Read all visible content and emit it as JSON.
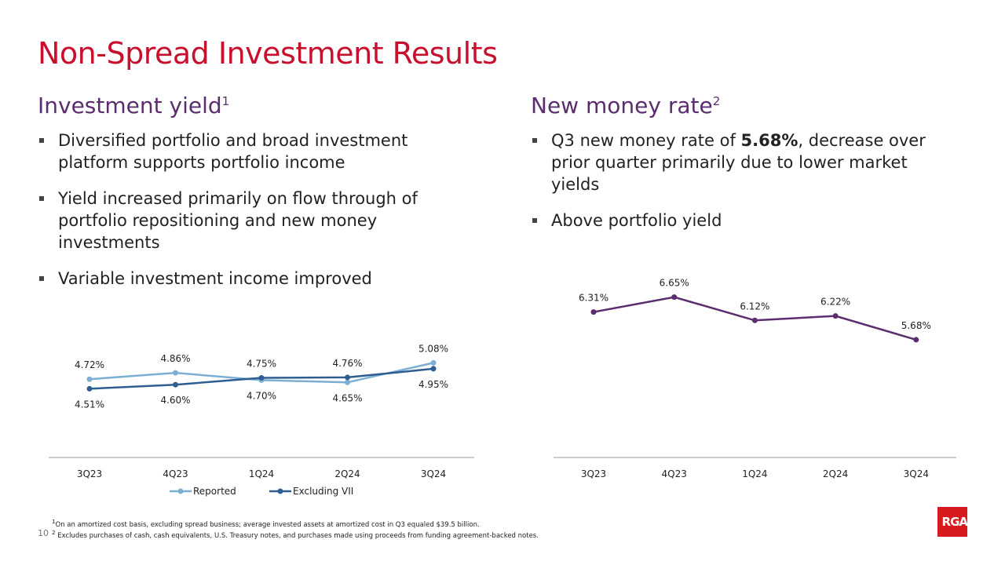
{
  "title": "Non-Spread Investment Results",
  "left": {
    "heading": "Investment yield",
    "heading_sup": "1",
    "bullets": [
      "Diversified portfolio and broad investment platform supports portfolio income",
      "Yield increased primarily on flow through of portfolio repositioning and new money investments",
      "Variable investment income improved"
    ]
  },
  "right": {
    "heading": "New money rate",
    "heading_sup": "2",
    "bullets": [
      {
        "pre": "Q3 new money rate of ",
        "bold": "5.68%",
        "post": ", decrease over prior quarter primarily due to lower market yields"
      },
      {
        "pre": "Above portfolio yield",
        "bold": "",
        "post": ""
      }
    ]
  },
  "chart_data": [
    {
      "type": "line",
      "categories": [
        "3Q23",
        "4Q23",
        "1Q24",
        "2Q24",
        "3Q24"
      ],
      "series": [
        {
          "name": "Reported",
          "values": [
            4.72,
            4.86,
            4.7,
            4.65,
            5.08
          ],
          "labels": [
            "4.72%",
            "4.86%",
            "4.70%",
            "4.65%",
            "5.08%"
          ],
          "color": "#7bafd4"
        },
        {
          "name": "Excluding VII",
          "values": [
            4.51,
            4.6,
            4.75,
            4.76,
            4.95
          ],
          "labels": [
            "4.51%",
            "4.60%",
            "4.75%",
            "4.76%",
            "4.95%"
          ],
          "color": "#2e5e91"
        }
      ],
      "ylim": [
        3.0,
        5.5
      ],
      "grid": false,
      "legend": "bottom"
    },
    {
      "type": "line",
      "categories": [
        "3Q23",
        "4Q23",
        "1Q24",
        "2Q24",
        "3Q24"
      ],
      "series": [
        {
          "values": [
            6.31,
            6.65,
            6.12,
            6.22,
            5.68
          ],
          "labels": [
            "6.31%",
            "6.65%",
            "6.12%",
            "6.22%",
            "5.68%"
          ],
          "color": "#5c2d6e"
        }
      ],
      "ylim": [
        3.0,
        7.0
      ],
      "grid": false
    }
  ],
  "footnotes": [
    "On an amortized cost basis, excluding spread business; average invested assets at amortized cost in Q3 equaled $39.5 billion.",
    "Excludes purchases of cash, cash equivalents, U.S. Treasury notes, and purchases made using proceeds from funding agreement-backed notes."
  ],
  "footnote_marks": [
    "1",
    "2"
  ],
  "page_number": "10",
  "logo_text": "RGA",
  "colors": {
    "title": "#c8102e",
    "heading": "#5c2d6e",
    "logo": "#d71920"
  }
}
